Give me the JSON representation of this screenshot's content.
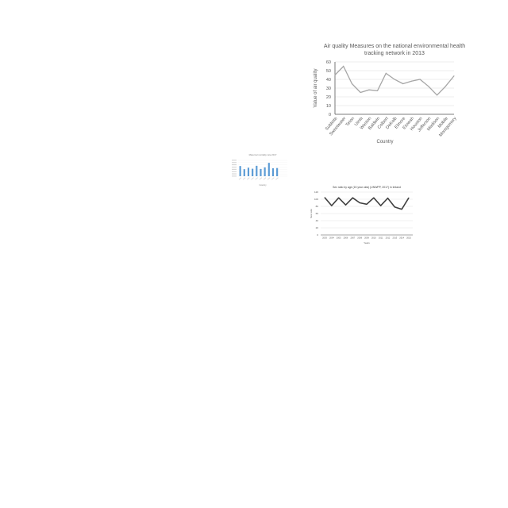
{
  "chart_data": [
    {
      "type": "line",
      "title": "Air quality Measures on the national environmental health tracking network in 2013",
      "title_lines": [
        "Air quality Measures on the national environmental health",
        "tracking network in 2013"
      ],
      "xlabel": "Country",
      "ylabel": "Value of air quality",
      "categories": [
        "Sublette",
        "Sweetwater",
        "Teton",
        "Uinta",
        "Weston",
        "Baldwin",
        "Colbert",
        "DeKalb",
        "Elmore",
        "Etowah",
        "Houston",
        "Jefferson",
        "Madison",
        "Mobile",
        "Montgomery"
      ],
      "series": [
        {
          "name": "",
          "values": [
            45,
            55,
            35,
            25,
            28,
            27,
            47,
            40,
            35,
            38,
            40,
            32,
            22,
            32,
            44
          ]
        }
      ],
      "ylim": [
        0,
        60
      ],
      "yticks": [
        "0",
        "10",
        "20",
        "30",
        "40",
        "50",
        "60"
      ],
      "grid": true,
      "colors": {
        "line": "#a6a6a6",
        "grid": "#d9d9d9",
        "axis": "#595959"
      }
    },
    {
      "type": "bar",
      "title": "Maternal mortality rate 2017",
      "xlabel": "Country",
      "ylabel": "",
      "categories": [
        "",
        "",
        "",
        "",
        "",
        "",
        "",
        "",
        "",
        "",
        "",
        ""
      ],
      "series": [
        {
          "name": "",
          "values": [
            90,
            62,
            75,
            66,
            92,
            64,
            78,
            118,
            70,
            72,
            0,
            0
          ]
        }
      ],
      "ylim": [
        0,
        140
      ],
      "grid": true,
      "colors": {
        "bar": "#5b9bd5",
        "text": "#7f7f7f"
      }
    },
    {
      "type": "line",
      "title": "Sex ratio by age (15 year olds) (UNWPP, 2017) in Ireland",
      "xlabel": "Years",
      "ylabel": "Sex ratio",
      "categories": [
        "2003",
        "2004",
        "2005",
        "2006",
        "2007",
        "2008",
        "2009",
        "2010",
        "2011",
        "2012",
        "2013",
        "2014",
        "2015"
      ],
      "series": [
        {
          "name": "",
          "values": [
            105,
            82,
            104,
            84,
            104,
            90,
            86,
            104,
            82,
            103,
            78,
            72,
            104
          ]
        }
      ],
      "ylim": [
        0,
        120
      ],
      "yticks": [
        "0",
        "20",
        "40",
        "60",
        "80",
        "100",
        "120"
      ],
      "grid": true,
      "colors": {
        "line": "#404040",
        "grid": "#d9d9d9",
        "axis": "#595959"
      }
    }
  ]
}
